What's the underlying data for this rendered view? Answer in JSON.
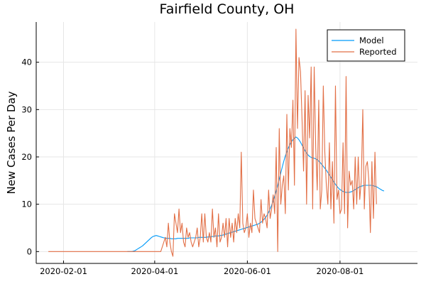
{
  "chart_data": {
    "type": "line",
    "title": "Fairfield County, OH",
    "xlabel": "",
    "ylabel": "New Cases Per Day",
    "x_start": "2020-01-22",
    "x_end": "2020-09-13",
    "xlim": [
      "2020-01-14",
      "2020-09-21"
    ],
    "ylim": [
      -2.5,
      48.5
    ],
    "x_ticks": [
      {
        "date": "2020-02-01",
        "label": "2020-02-01"
      },
      {
        "date": "2020-04-01",
        "label": "2020-04-01"
      },
      {
        "date": "2020-06-01",
        "label": "2020-06-01"
      },
      {
        "date": "2020-08-01",
        "label": "2020-08-01"
      }
    ],
    "y_ticks": [
      0,
      10,
      20,
      30,
      40
    ],
    "grid": true,
    "legend": "top-right",
    "series": [
      {
        "name": "Model",
        "color": "#009af9",
        "start_date": "2020-03-14",
        "values": [
          0,
          0,
          0,
          0,
          0.1,
          0.2,
          0.4,
          0.6,
          0.8,
          1.0,
          1.2,
          1.5,
          1.8,
          2.1,
          2.4,
          2.7,
          3.0,
          3.2,
          3.3,
          3.4,
          3.3,
          3.2,
          3.1,
          3.0,
          2.9,
          2.9,
          2.8,
          2.8,
          2.8,
          2.7,
          2.7,
          2.7,
          2.7,
          2.8,
          2.8,
          2.8,
          2.8,
          2.8,
          2.8,
          2.8,
          2.8,
          2.9,
          2.9,
          2.9,
          2.9,
          2.9,
          2.9,
          3.0,
          3.0,
          3.0,
          3.0,
          3.0,
          3.0,
          3.1,
          3.1,
          3.1,
          3.2,
          3.2,
          3.3,
          3.3,
          3.3,
          3.4,
          3.4,
          3.5,
          3.6,
          3.7,
          3.8,
          3.9,
          4.0,
          4.1,
          4.2,
          4.3,
          4.4,
          4.5,
          4.6,
          4.7,
          4.8,
          4.9,
          5.0,
          5.1,
          5.2,
          5.3,
          5.4,
          5.5,
          5.6,
          5.7,
          5.8,
          6.0,
          6.2,
          6.5,
          6.8,
          7.2,
          7.7,
          8.3,
          9.0,
          9.8,
          10.7,
          11.7,
          12.8,
          14.0,
          15.3,
          16.6,
          17.9,
          19.1,
          20.2,
          21.1,
          21.9,
          22.6,
          23.2,
          23.6,
          24.0,
          24.2,
          24.0,
          23.6,
          23.1,
          22.5,
          21.9,
          21.3,
          20.8,
          20.4,
          20.1,
          19.9,
          19.8,
          19.7,
          19.6,
          19.4,
          19.1,
          18.8,
          18.4,
          18.0,
          17.6,
          17.2,
          16.7,
          16.2,
          15.7,
          15.2,
          14.7,
          14.2,
          13.8,
          13.4,
          13.1,
          12.9,
          12.7,
          12.6,
          12.5,
          12.5,
          12.5,
          12.6,
          12.7,
          12.9,
          13.1,
          13.3,
          13.5,
          13.7,
          13.8,
          13.9,
          14.0,
          14.0,
          14.0,
          14.0,
          14.0,
          14.0,
          13.9,
          13.8,
          13.7,
          13.5,
          13.3,
          13.1,
          12.9,
          12.8
        ]
      },
      {
        "name": "Reported",
        "color": "#e26f46",
        "start_date": "2020-01-22",
        "values": [
          0,
          0,
          0,
          0,
          0,
          0,
          0,
          0,
          0,
          0,
          0,
          0,
          0,
          0,
          0,
          0,
          0,
          0,
          0,
          0,
          0,
          0,
          0,
          0,
          0,
          0,
          0,
          0,
          0,
          0,
          0,
          0,
          0,
          0,
          0,
          0,
          0,
          0,
          0,
          0,
          0,
          0,
          0,
          0,
          0,
          0,
          0,
          0,
          0,
          0,
          0,
          0,
          0,
          0,
          0,
          0,
          0,
          0,
          0,
          0,
          0,
          0,
          0,
          0,
          0,
          0,
          0,
          0,
          0,
          0,
          0,
          0,
          0,
          0,
          0,
          1,
          2,
          3,
          1,
          6,
          2,
          0,
          -1,
          8,
          6,
          4,
          9,
          4,
          6,
          2,
          1,
          5,
          3,
          4,
          2,
          1,
          2,
          3,
          5,
          1,
          3,
          8,
          2,
          8,
          3,
          2,
          4,
          2,
          9,
          3,
          5,
          1,
          8,
          2,
          3,
          6,
          3,
          7,
          1,
          7,
          3,
          6,
          2,
          7,
          4,
          8,
          5,
          21,
          6,
          4,
          5,
          8,
          3,
          6,
          4,
          13,
          7,
          6,
          5,
          4,
          11,
          6,
          8,
          7,
          5,
          13,
          7,
          9,
          12,
          8,
          22,
          0,
          26,
          10,
          14,
          16,
          8,
          29,
          13,
          26,
          22,
          32,
          14,
          47,
          26,
          41,
          38,
          28,
          17,
          34,
          10,
          33,
          24,
          39,
          9,
          39,
          22,
          13,
          32,
          9,
          13,
          35,
          21,
          14,
          10,
          23,
          9,
          19,
          6,
          35,
          11,
          13,
          8,
          9,
          23,
          8,
          37,
          5,
          17,
          14,
          15,
          9,
          20,
          10,
          20,
          11,
          15,
          30,
          9,
          18,
          19,
          15,
          4,
          19,
          7,
          21,
          10
        ]
      }
    ]
  }
}
